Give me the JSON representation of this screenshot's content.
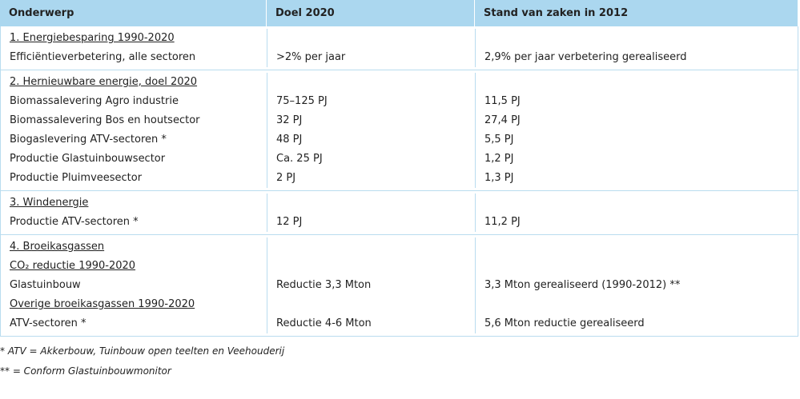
{
  "header": [
    "Onderwerp",
    "Doel 2020",
    "Stand van zaken in 2012"
  ],
  "groups": [
    [
      "1. Energiebesparing 1990-2020",
      [
        "Efficiëntieverbetering, alle sectoren",
        ">2% per jaar",
        "2,9% per jaar verbetering gerealiseerd"
      ]
    ],
    [
      "2. Hernieuwbare energie, doel 2020",
      [
        "Biomassalevering Agro industrie",
        "75–125 PJ",
        "11,5 PJ"
      ],
      [
        "Biomassalevering Bos en houtsector",
        "32 PJ",
        "27,4 PJ"
      ],
      [
        "Biogaslevering ATV-sectoren *",
        "48 PJ",
        "5,5 PJ"
      ],
      [
        "Productie Glastuinbouwsector",
        "Ca. 25 PJ",
        "1,2 PJ"
      ],
      [
        "Productie Pluimveesector",
        "2 PJ",
        "1,3 PJ"
      ]
    ],
    [
      "3. Windenergie",
      [
        "Productie ATV-sectoren *",
        "12 PJ",
        "11,2 PJ"
      ]
    ],
    [
      "4. Broeikasgassen",
      "CO₂ reductie 1990-2020",
      [
        "Glastuinbouw",
        "Reductie 3,3 Mton",
        "3,3 Mton gerealiseerd (1990-2012) **"
      ],
      "Overige broeikasgassen 1990-2020",
      [
        "ATV-sectoren *",
        "Reductie 4-6 Mton",
        "5,6 Mton reductie gerealiseerd"
      ]
    ]
  ],
  "footnotes": [
    "* ATV = Akkerbouw, Tuinbouw open teelten en Veehouderij",
    "** = Conform Glastuinbouwmonitor"
  ]
}
